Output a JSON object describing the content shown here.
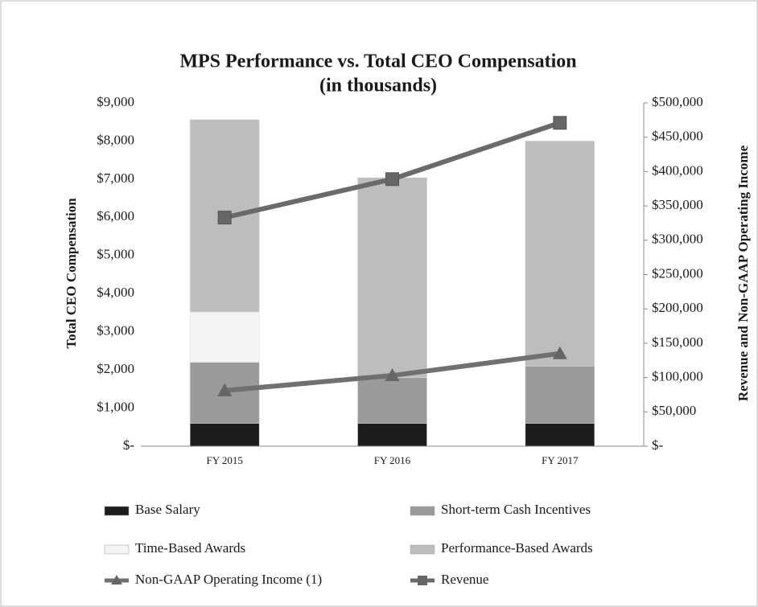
{
  "chart_data": {
    "type": "bar",
    "stacked": true,
    "title": [
      "MPS Performance vs. Total CEO Compensation",
      "(in thousands)"
    ],
    "ylabel": "Total CEO Compensation",
    "y2label": "Revenue and Non-GAAP Operating Income",
    "categories": [
      "FY 2015",
      "FY 2016",
      "FY 2017"
    ],
    "ylim": [
      0,
      9000
    ],
    "yticks": [
      {
        "value": 0,
        "label": "$-"
      },
      {
        "value": 1000,
        "label": "$1,000"
      },
      {
        "value": 2000,
        "label": "$2,000"
      },
      {
        "value": 3000,
        "label": "$3,000"
      },
      {
        "value": 4000,
        "label": "$4,000"
      },
      {
        "value": 5000,
        "label": "$5,000"
      },
      {
        "value": 6000,
        "label": "$6,000"
      },
      {
        "value": 7000,
        "label": "$7,000"
      },
      {
        "value": 8000,
        "label": "$8,000"
      },
      {
        "value": 9000,
        "label": "$9,000"
      }
    ],
    "y2lim": [
      0,
      500000
    ],
    "y2ticks": [
      {
        "value": 0,
        "label": "$-"
      },
      {
        "value": 50000,
        "label": "$50,000"
      },
      {
        "value": 100000,
        "label": "$100,000"
      },
      {
        "value": 150000,
        "label": "$150,000"
      },
      {
        "value": 200000,
        "label": "$200,000"
      },
      {
        "value": 250000,
        "label": "$250,000"
      },
      {
        "value": 300000,
        "label": "$300,000"
      },
      {
        "value": 350000,
        "label": "$350,000"
      },
      {
        "value": 400000,
        "label": "$400,000"
      },
      {
        "value": 450000,
        "label": "$450,000"
      },
      {
        "value": 500000,
        "label": "$500,000"
      }
    ],
    "series": [
      {
        "name": "Base Salary",
        "type": "bar",
        "color": "#1c1c1c",
        "values": [
          600,
          600,
          600
        ]
      },
      {
        "name": "Short-term Cash Incentives",
        "type": "bar",
        "color": "#9a9a9a",
        "values": [
          1600,
          1200,
          1500
        ]
      },
      {
        "name": "Time-Based Awards",
        "type": "bar",
        "color": "#f4f4f4",
        "values": [
          1320,
          0,
          0
        ]
      },
      {
        "name": "Performance-Based Awards",
        "type": "bar",
        "color": "#bdbdbd",
        "values": [
          5040,
          5240,
          5900
        ]
      },
      {
        "name": "Non-GAAP Operating Income (1)",
        "type": "line",
        "marker": "triangle",
        "axis": "y2",
        "color": "#707070",
        "values": [
          81000,
          103000,
          135000
        ]
      },
      {
        "name": "Revenue",
        "type": "line",
        "marker": "square",
        "axis": "y2",
        "color": "#6a6a6a",
        "values": [
          333000,
          389000,
          471000
        ]
      }
    ]
  }
}
